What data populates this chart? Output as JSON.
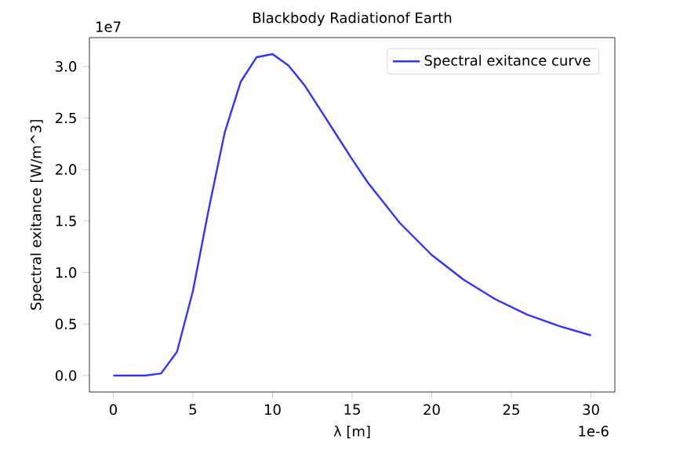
{
  "chart_data": {
    "type": "line",
    "title": "Blackbody Radiationof Earth",
    "xlabel": "λ [m]",
    "ylabel": "Spectral exitance [W/m^3]",
    "annotations": [
      "1e7",
      "1e-6"
    ],
    "x": [
      0,
      1,
      2,
      3,
      4,
      5,
      6,
      7,
      8,
      9,
      10,
      11,
      12,
      13,
      14,
      15,
      16,
      18,
      20,
      22,
      24,
      26,
      28,
      30
    ],
    "series": [
      {
        "name": "Spectral exitance curve",
        "color": "#3333ff",
        "values": [
          0,
          0,
          0,
          0.02,
          0.23,
          0.82,
          1.62,
          2.36,
          2.85,
          3.09,
          3.12,
          3.01,
          2.82,
          2.58,
          2.34,
          2.1,
          1.87,
          1.48,
          1.17,
          0.93,
          0.74,
          0.59,
          0.48,
          0.39
        ]
      }
    ],
    "xlim": [
      -1.5,
      31.5
    ],
    "ylim": [
      -0.16,
      3.28
    ],
    "xticks": [
      0,
      5,
      10,
      15,
      20,
      25,
      30
    ],
    "yticks": [
      {
        "value": 0,
        "label": "0.0"
      },
      {
        "value": 0.5,
        "label": "0.5"
      },
      {
        "value": 1,
        "label": "1.0"
      },
      {
        "value": 1.5,
        "label": "1.5"
      },
      {
        "value": 2,
        "label": "2.0"
      },
      {
        "value": 2.5,
        "label": "2.5"
      },
      {
        "value": 3,
        "label": "3.0"
      }
    ],
    "legend": "top right",
    "grid": false,
    "marker": "none",
    "line_style": "solid"
  }
}
